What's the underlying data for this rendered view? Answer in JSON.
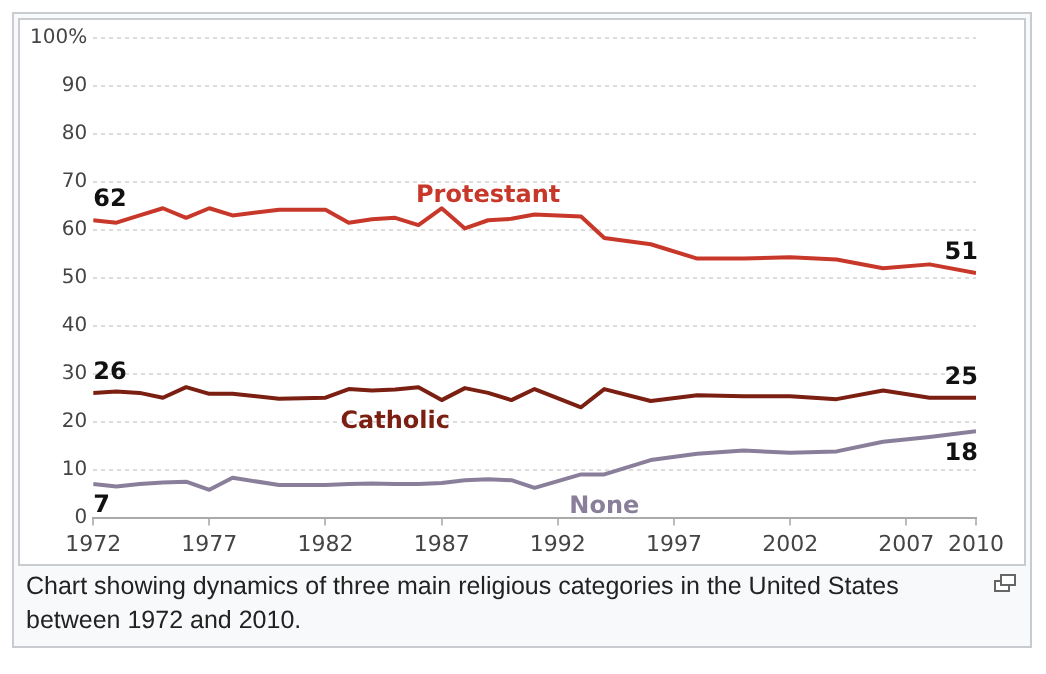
{
  "chart_data": {
    "type": "line",
    "x": [
      1972,
      1973,
      1974,
      1975,
      1976,
      1977,
      1978,
      1980,
      1982,
      1983,
      1984,
      1985,
      1986,
      1987,
      1988,
      1989,
      1990,
      1991,
      1993,
      1994,
      1996,
      1998,
      2000,
      2002,
      2004,
      2006,
      2008,
      2010
    ],
    "series": [
      {
        "name": "Protestant",
        "color": "#c8382a",
        "values": [
          62,
          61.5,
          63,
          64.5,
          62.5,
          64.5,
          63,
          64.2,
          64.2,
          61.5,
          62.2,
          62.5,
          61,
          64.5,
          60.3,
          62,
          62.3,
          63.2,
          62.8,
          58.3,
          57,
          54,
          54,
          54.3,
          53.8,
          52,
          52.8,
          51
        ],
        "value_labels": [
          "62",
          null,
          null,
          null,
          null,
          null,
          null,
          null,
          null,
          null,
          null,
          null,
          null,
          null,
          null,
          null,
          null,
          null,
          null,
          null,
          null,
          null,
          null,
          null,
          null,
          null,
          null,
          "51"
        ]
      },
      {
        "name": "Catholic",
        "color": "#7a1f12",
        "values": [
          26,
          26.3,
          26,
          25,
          27.2,
          25.8,
          25.8,
          24.8,
          25,
          26.8,
          26.5,
          26.7,
          27.2,
          24.5,
          27,
          26,
          24.5,
          26.8,
          23,
          26.8,
          24.3,
          25.5,
          25.3,
          25.3,
          24.7,
          26.5,
          25,
          25
        ],
        "value_labels": [
          "26",
          null,
          null,
          null,
          null,
          null,
          null,
          null,
          null,
          null,
          null,
          null,
          null,
          null,
          null,
          null,
          null,
          null,
          null,
          null,
          null,
          null,
          null,
          null,
          null,
          null,
          null,
          "25"
        ]
      },
      {
        "name": "None",
        "color": "#8a7f9a",
        "values": [
          7,
          6.5,
          7,
          7.3,
          7.5,
          5.8,
          8.3,
          6.8,
          6.8,
          7,
          7.1,
          7,
          7,
          7.2,
          7.8,
          8,
          7.8,
          6.2,
          9,
          9,
          12,
          13.3,
          14,
          13.5,
          13.8,
          15.8,
          16.8,
          18
        ],
        "value_labels": [
          "7",
          null,
          null,
          null,
          null,
          null,
          null,
          null,
          null,
          null,
          null,
          null,
          null,
          null,
          null,
          null,
          null,
          null,
          null,
          null,
          null,
          null,
          null,
          null,
          null,
          null,
          null,
          "18"
        ]
      }
    ],
    "xlim": [
      1972,
      2010
    ],
    "xticks": [
      1972,
      1977,
      1982,
      1987,
      1992,
      1997,
      2002,
      2007,
      2010
    ],
    "ylim": [
      0,
      100
    ],
    "yticks": [
      0,
      10,
      20,
      30,
      40,
      50,
      60,
      70,
      80,
      90,
      {
        "value": 100,
        "label": "100%"
      }
    ],
    "grid": "y",
    "legend": false,
    "marker": "none",
    "line_style": "solid",
    "annotations": [
      "Chart showing dynamics of three main religious categories in the United States between 1972 and 2010."
    ]
  }
}
